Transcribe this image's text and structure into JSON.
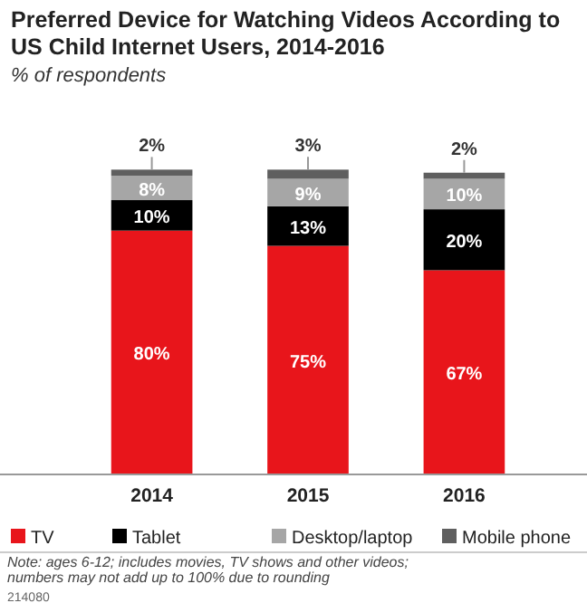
{
  "chart_data": {
    "type": "bar",
    "stacked": true,
    "title": "Preferred Device for Watching Videos According to US Child Internet Users, 2014-2016",
    "subtitle": "% of respondents",
    "categories": [
      "2014",
      "2015",
      "2016"
    ],
    "series": [
      {
        "name": "TV",
        "color": "#e8151b",
        "values": [
          80,
          75,
          67
        ],
        "value_labels": [
          "80%",
          "75%",
          "67%"
        ]
      },
      {
        "name": "Tablet",
        "color": "#000000",
        "values": [
          10,
          13,
          20
        ],
        "value_labels": [
          "10%",
          "13%",
          "20%"
        ]
      },
      {
        "name": "Desktop/laptop",
        "color": "#a6a6a6",
        "values": [
          8,
          9,
          10
        ],
        "value_labels": [
          "8%",
          "9%",
          "10%"
        ]
      },
      {
        "name": "Mobile phone",
        "color": "#5f5f5f",
        "values": [
          2,
          3,
          2
        ],
        "value_labels": [
          "2%",
          "3%",
          "2%"
        ]
      }
    ],
    "ylim": [
      0,
      101
    ],
    "tick_labels": "x",
    "legend": "bottom",
    "annotations": [
      "Note: ages 6-12; includes movies, TV shows and other videos; numbers may not add up to 100% due to rounding",
      "214080"
    ]
  }
}
